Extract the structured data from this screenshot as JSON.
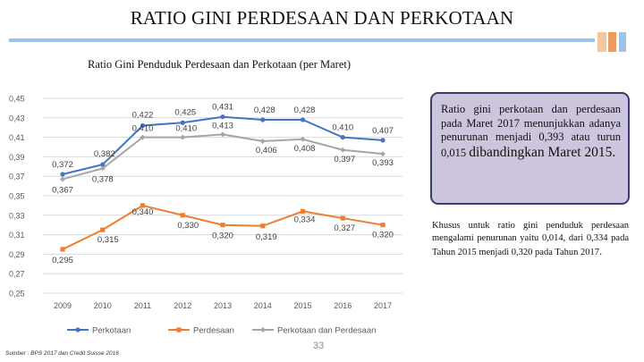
{
  "page": {
    "title": "RATIO GINI PERDESAAN DAN PERKOTAAN",
    "page_number": "33",
    "source": "Sumber : BPS 2017 dan Credit Suisse 2016",
    "accent_color": "#9dc3e6"
  },
  "callout": {
    "text_main": "Ratio gini perkotaan dan perdesaan pada Maret 2017 menunjukkan adanya penurunan menjadi 0,393 atau turun 0,015",
    "text_big": "dibandingkan Maret 2015.",
    "bg_color": "#ccc5dd",
    "border_color": "#3c3a73"
  },
  "note": {
    "text_main": "Khusus untuk ratio gini penduduk perdesaan mengalami penurunan yaitu 0,014, dari 0,334 pada Tahun 2015 menjadi 0,320 pada Tahun 2017",
    "text_end": "."
  },
  "chart_data": {
    "type": "line",
    "title": "Ratio Gini Penduduk Perdesaan dan Perkotaan (per Maret)",
    "categories": [
      "2009",
      "2010",
      "2011",
      "2012",
      "2013",
      "2014",
      "2015",
      "2016",
      "2017"
    ],
    "ylim": [
      0.25,
      0.45
    ],
    "yticks": [
      "0,45",
      "0,43",
      "0,41",
      "0,39",
      "0,37",
      "0,35",
      "0,33",
      "0,31",
      "0,29",
      "0,27",
      "0,25"
    ],
    "grid": true,
    "legend": "bottom",
    "series": [
      {
        "name": "Perkotaan",
        "color": "#4472c4",
        "values": [
          0.372,
          0.382,
          0.422,
          0.425,
          0.431,
          0.428,
          0.428,
          0.41,
          0.407
        ],
        "labels": [
          "0,372",
          "0,382",
          "0,422",
          "0,425",
          "0,431",
          "0,428",
          "0,428",
          "0,410",
          "0,407"
        ]
      },
      {
        "name": "Perdesaan",
        "color": "#ed7d31",
        "values": [
          0.295,
          0.315,
          0.34,
          0.33,
          0.32,
          0.319,
          0.334,
          0.327,
          0.32
        ],
        "labels": [
          "0,295",
          "0,315",
          "0,340",
          "0,330",
          "0,320",
          "0,319",
          "0,334",
          "0,327",
          "0,320"
        ]
      },
      {
        "name": "Perkotaan dan Perdesaan",
        "color": "#a5a5a5",
        "values": [
          0.367,
          0.378,
          0.41,
          0.41,
          0.413,
          0.406,
          0.408,
          0.397,
          0.393
        ],
        "labels": [
          "0,367",
          "0,378",
          "0,410",
          "0,410",
          "0,413",
          "0,406",
          "0,408",
          "0,397",
          "0,393"
        ]
      }
    ]
  }
}
